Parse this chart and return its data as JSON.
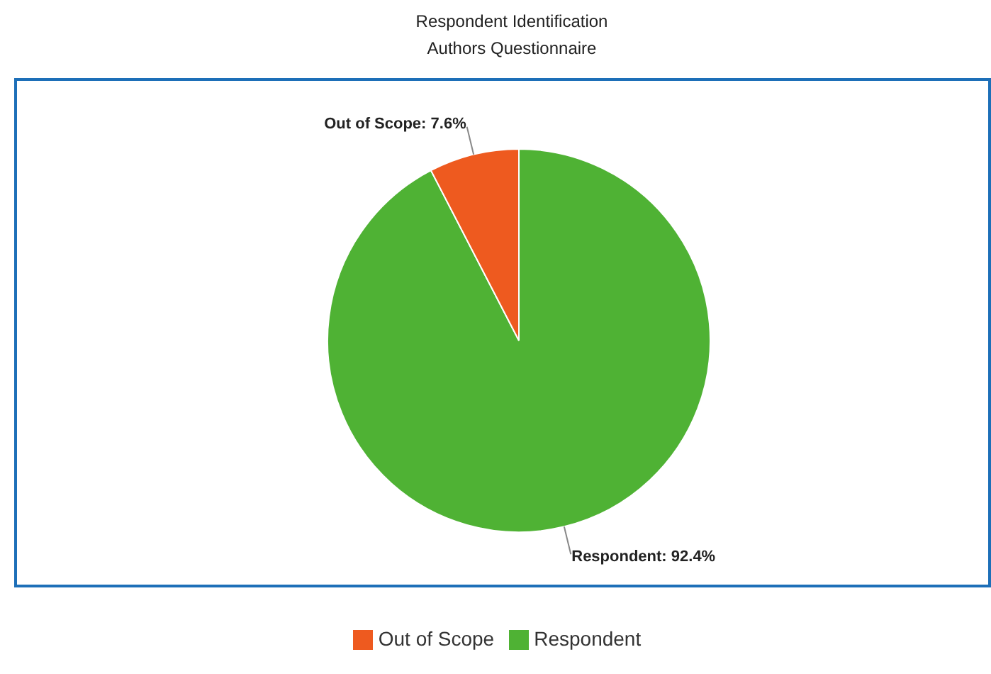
{
  "chart_data": {
    "type": "pie",
    "title": "Respondent Identification",
    "subtitle": "Authors Questionnaire",
    "categories": [
      "Respondent",
      "Out of Scope"
    ],
    "values": [
      92.4,
      7.6
    ],
    "colors": [
      "#4fb234",
      "#ee5a1f"
    ],
    "value_labels": [
      "Respondent: 92.4%",
      "Out of Scope: 7.6%"
    ],
    "legend": "bottom"
  }
}
